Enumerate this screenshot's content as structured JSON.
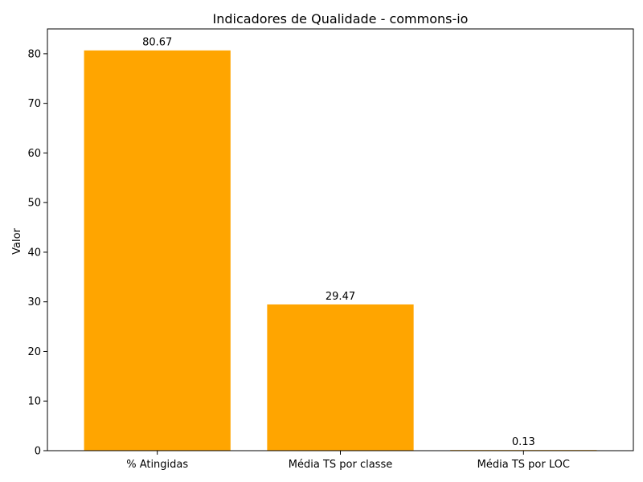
{
  "chart_data": {
    "type": "bar",
    "title": "Indicadores de Qualidade - commons-io",
    "xlabel": "",
    "ylabel": "Valor",
    "categories": [
      "% Atingidas",
      "Média TS por classe",
      "Média TS por LOC"
    ],
    "values": [
      80.67,
      29.47,
      0.13
    ],
    "value_labels": [
      "80.67",
      "29.47",
      "0.13"
    ],
    "ylim": [
      0,
      85
    ],
    "yticks": [
      0,
      10,
      20,
      30,
      40,
      50,
      60,
      70,
      80
    ],
    "grid": false,
    "legend": "none",
    "bar_color": "#ffa500"
  }
}
